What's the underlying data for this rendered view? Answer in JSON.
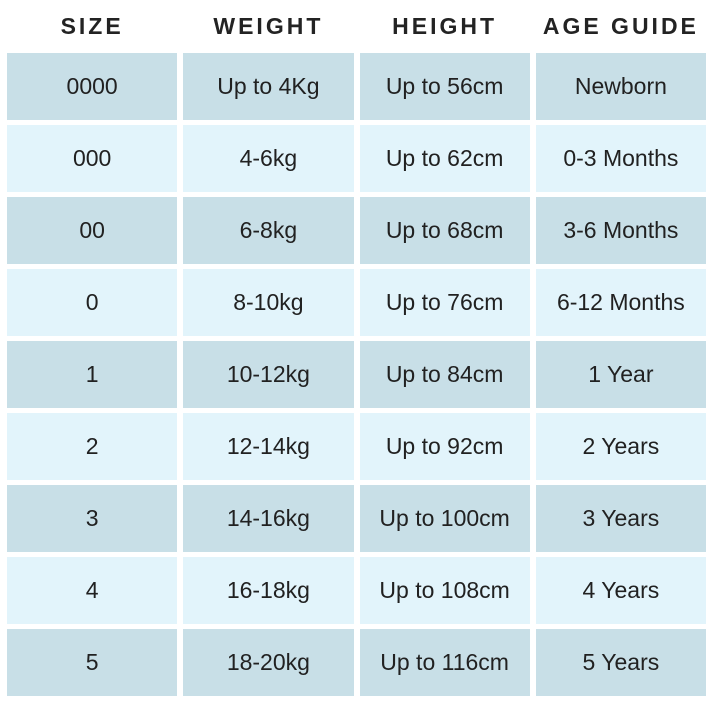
{
  "size_chart": {
    "headers": {
      "size": "SIZE",
      "weight": "WEIGHT",
      "height": "HEIGHT",
      "age_guide": "AGE GUIDE"
    },
    "rows": [
      {
        "size": "0000",
        "weight": "Up to 4Kg",
        "height": "Up to 56cm",
        "age": "Newborn"
      },
      {
        "size": "000",
        "weight": "4-6kg",
        "height": "Up to 62cm",
        "age": "0-3 Months"
      },
      {
        "size": "00",
        "weight": "6-8kg",
        "height": "Up to 68cm",
        "age": "3-6 Months"
      },
      {
        "size": "0",
        "weight": "8-10kg",
        "height": "Up to 76cm",
        "age": "6-12 Months"
      },
      {
        "size": "1",
        "weight": "10-12kg",
        "height": "Up to 84cm",
        "age": "1 Year"
      },
      {
        "size": "2",
        "weight": "12-14kg",
        "height": "Up to 92cm",
        "age": "2 Years"
      },
      {
        "size": "3",
        "weight": "14-16kg",
        "height": "Up to 100cm",
        "age": "3 Years"
      },
      {
        "size": "4",
        "weight": "16-18kg",
        "height": "Up to 108cm",
        "age": "4 Years"
      },
      {
        "size": "5",
        "weight": "18-20kg",
        "height": "Up to 116cm",
        "age": "5 Years"
      }
    ],
    "colors": {
      "row_dark": "#c8dfe7",
      "row_light": "#e2f4fb",
      "text": "#212121",
      "background": "#ffffff"
    }
  }
}
